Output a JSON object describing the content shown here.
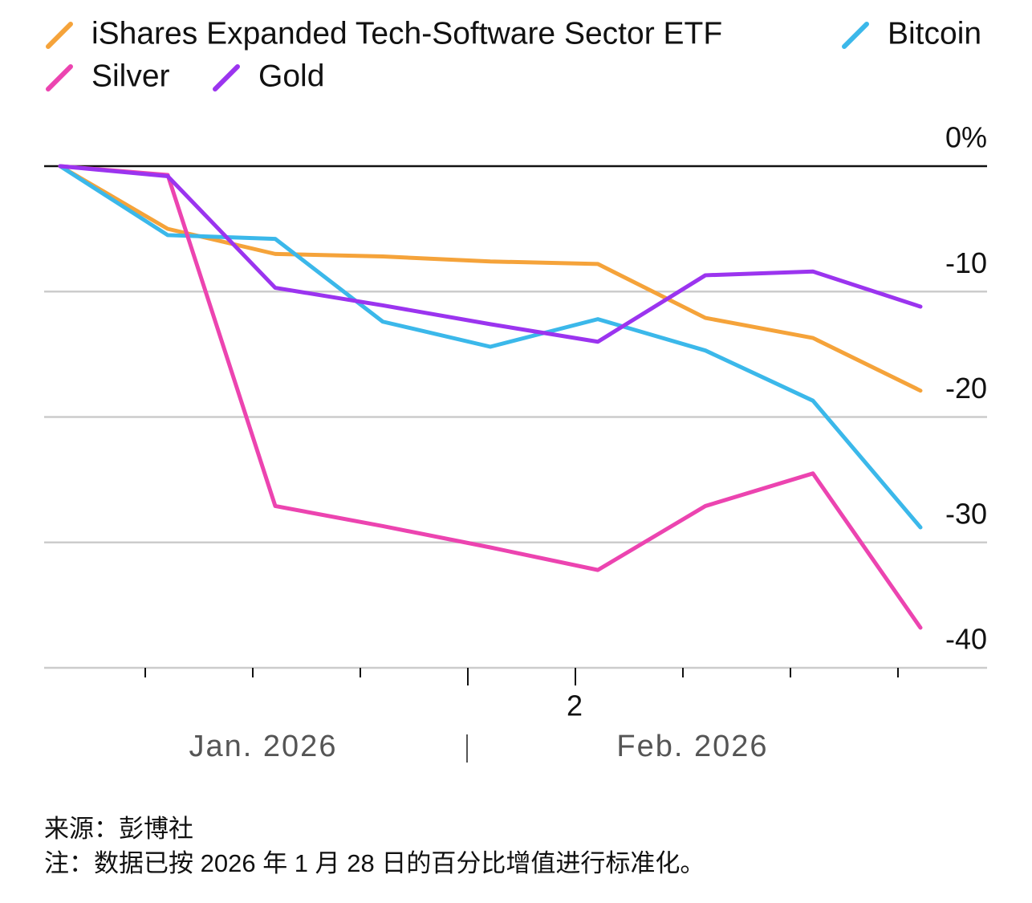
{
  "chart_data": {
    "type": "line",
    "categories": [
      null,
      null,
      null,
      null,
      null,
      null,
      null,
      null,
      null
    ],
    "series": [
      {
        "name": "iShares Expanded Tech-Software Sector ETF",
        "color": "#f5a33a",
        "values": [
          0,
          -5.0,
          -7.0,
          -7.2,
          -7.6,
          -7.8,
          -12.1,
          -13.7,
          -17.9
        ]
      },
      {
        "name": "Bitcoin",
        "color": "#3bb8ea",
        "values": [
          0,
          -5.5,
          -5.8,
          -12.4,
          -14.4,
          -12.2,
          -14.7,
          -18.7,
          -28.8
        ]
      },
      {
        "name": "Silver",
        "color": "#ec44b0",
        "values": [
          0,
          -0.7,
          -27.1,
          -28.7,
          -30.4,
          -32.2,
          -27.1,
          -24.5,
          -36.8
        ]
      },
      {
        "name": "Gold",
        "color": "#9b34ef",
        "values": [
          0,
          -0.8,
          -9.7,
          -11.1,
          -12.6,
          -14.0,
          -8.7,
          -8.4,
          -11.2
        ]
      }
    ],
    "ylim": [
      -40,
      0
    ],
    "yticks": [
      {
        "value": 0,
        "label": "0%"
      },
      -10,
      -20,
      -30,
      -40
    ],
    "grid": true,
    "x_tick_label": "2",
    "months": [
      "Jan. 2026",
      "Feb. 2026"
    ],
    "source": "来源：彭博社",
    "note": "注：数据已按 2026 年 1 月 28 日的百分比增值进行标准化。"
  }
}
